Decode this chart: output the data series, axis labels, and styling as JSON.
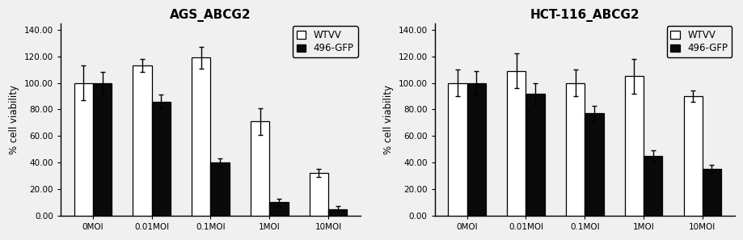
{
  "chart1": {
    "title": "AGS_ABCG2",
    "categories": [
      "0MOI",
      "0.01MOI",
      "0.1MOI",
      "1MOI",
      "10MOI"
    ],
    "wtvv_values": [
      100,
      113,
      119,
      71,
      32
    ],
    "wtvv_errors": [
      13,
      5,
      8,
      10,
      3
    ],
    "gfp_values": [
      100,
      86,
      40,
      10,
      5
    ],
    "gfp_errors": [
      8,
      5,
      3,
      3,
      2
    ]
  },
  "chart2": {
    "title": "HCT-116_ABCG2",
    "categories": [
      "0MOI",
      "0.01MOI",
      "0.1MOI",
      "1MOI",
      "10MOI"
    ],
    "wtvv_values": [
      100,
      109,
      100,
      105,
      90
    ],
    "wtvv_errors": [
      10,
      13,
      10,
      13,
      4
    ],
    "gfp_values": [
      100,
      92,
      77,
      45,
      35
    ],
    "gfp_errors": [
      9,
      8,
      6,
      4,
      3
    ]
  },
  "ylabel": "% cell viability",
  "ylim": [
    0,
    145
  ],
  "yticks": [
    0,
    20,
    40,
    60,
    80,
    100,
    120,
    140
  ],
  "ytick_labels": [
    "0.00",
    "20.00",
    "40.00",
    "60.00",
    "80.00",
    "100.00",
    "120.00",
    "140.00"
  ],
  "legend_labels": [
    "WTVV",
    "496-GFP"
  ],
  "bar_width": 0.32,
  "wtvv_color": "#ffffff",
  "gfp_color": "#0a0a0a",
  "edge_color": "#000000",
  "title_fontsize": 11,
  "axis_fontsize": 8.5,
  "tick_fontsize": 7.5,
  "legend_fontsize": 8.5,
  "bg_color": "#f0f0f0"
}
